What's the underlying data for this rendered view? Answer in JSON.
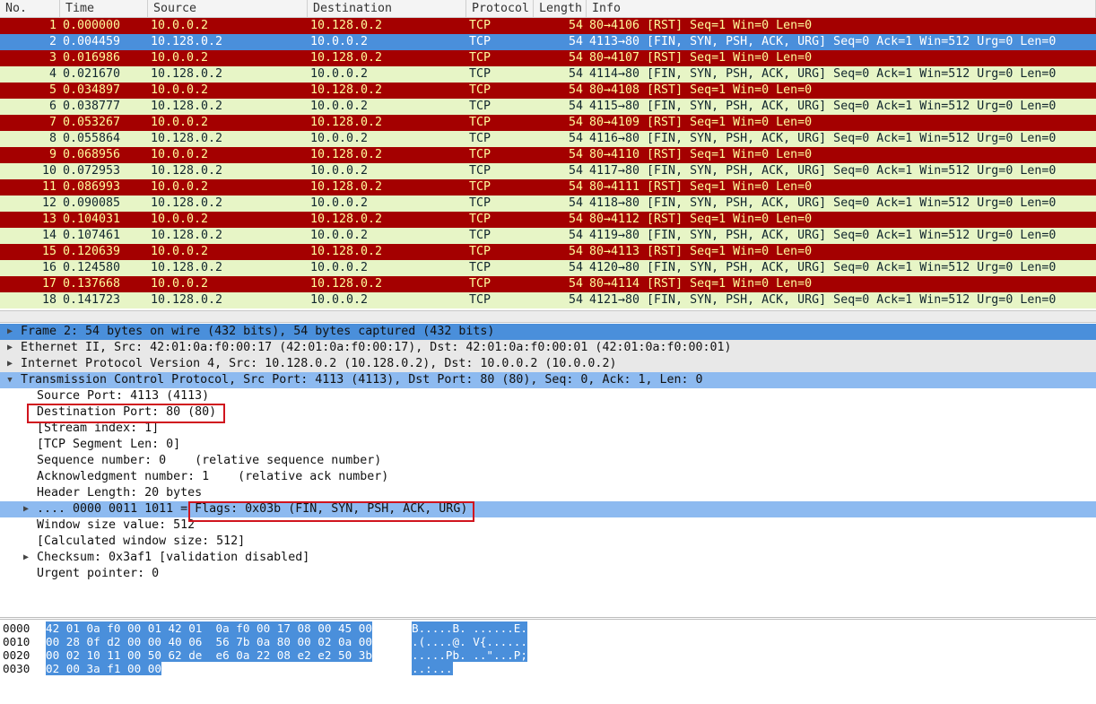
{
  "packet_list": {
    "columns": [
      "No.",
      "Time",
      "Source",
      "Destination",
      "Protocol",
      "Length",
      "Info"
    ],
    "row_colors": {
      "rst": {
        "background": "#a40000",
        "text": "#fffc9c"
      },
      "syn": {
        "background": "#e7f5c6",
        "text": "#12272e"
      },
      "selected": {
        "background": "#4a8fdb",
        "text": "#ffffff"
      }
    },
    "rows": [
      {
        "style": "rst",
        "cells": [
          "1",
          "0.000000",
          "10.0.0.2",
          "10.128.0.2",
          "TCP",
          "54",
          "80→4106 [RST] Seq=1 Win=0 Len=0"
        ]
      },
      {
        "style": "selected",
        "cells": [
          "2",
          "0.004459",
          "10.128.0.2",
          "10.0.0.2",
          "TCP",
          "54",
          "4113→80 [FIN, SYN, PSH, ACK, URG] Seq=0 Ack=1 Win=512 Urg=0 Len=0"
        ]
      },
      {
        "style": "rst",
        "cells": [
          "3",
          "0.016986",
          "10.0.0.2",
          "10.128.0.2",
          "TCP",
          "54",
          "80→4107 [RST] Seq=1 Win=0 Len=0"
        ]
      },
      {
        "style": "syn",
        "cells": [
          "4",
          "0.021670",
          "10.128.0.2",
          "10.0.0.2",
          "TCP",
          "54",
          "4114→80 [FIN, SYN, PSH, ACK, URG] Seq=0 Ack=1 Win=512 Urg=0 Len=0"
        ]
      },
      {
        "style": "rst",
        "cells": [
          "5",
          "0.034897",
          "10.0.0.2",
          "10.128.0.2",
          "TCP",
          "54",
          "80→4108 [RST] Seq=1 Win=0 Len=0"
        ]
      },
      {
        "style": "syn",
        "cells": [
          "6",
          "0.038777",
          "10.128.0.2",
          "10.0.0.2",
          "TCP",
          "54",
          "4115→80 [FIN, SYN, PSH, ACK, URG] Seq=0 Ack=1 Win=512 Urg=0 Len=0"
        ]
      },
      {
        "style": "rst",
        "cells": [
          "7",
          "0.053267",
          "10.0.0.2",
          "10.128.0.2",
          "TCP",
          "54",
          "80→4109 [RST] Seq=1 Win=0 Len=0"
        ]
      },
      {
        "style": "syn",
        "cells": [
          "8",
          "0.055864",
          "10.128.0.2",
          "10.0.0.2",
          "TCP",
          "54",
          "4116→80 [FIN, SYN, PSH, ACK, URG] Seq=0 Ack=1 Win=512 Urg=0 Len=0"
        ]
      },
      {
        "style": "rst",
        "cells": [
          "9",
          "0.068956",
          "10.0.0.2",
          "10.128.0.2",
          "TCP",
          "54",
          "80→4110 [RST] Seq=1 Win=0 Len=0"
        ]
      },
      {
        "style": "syn",
        "cells": [
          "10",
          "0.072953",
          "10.128.0.2",
          "10.0.0.2",
          "TCP",
          "54",
          "4117→80 [FIN, SYN, PSH, ACK, URG] Seq=0 Ack=1 Win=512 Urg=0 Len=0"
        ]
      },
      {
        "style": "rst",
        "cells": [
          "11",
          "0.086993",
          "10.0.0.2",
          "10.128.0.2",
          "TCP",
          "54",
          "80→4111 [RST] Seq=1 Win=0 Len=0"
        ]
      },
      {
        "style": "syn",
        "cells": [
          "12",
          "0.090085",
          "10.128.0.2",
          "10.0.0.2",
          "TCP",
          "54",
          "4118→80 [FIN, SYN, PSH, ACK, URG] Seq=0 Ack=1 Win=512 Urg=0 Len=0"
        ]
      },
      {
        "style": "rst",
        "cells": [
          "13",
          "0.104031",
          "10.0.0.2",
          "10.128.0.2",
          "TCP",
          "54",
          "80→4112 [RST] Seq=1 Win=0 Len=0"
        ]
      },
      {
        "style": "syn",
        "cells": [
          "14",
          "0.107461",
          "10.128.0.2",
          "10.0.0.2",
          "TCP",
          "54",
          "4119→80 [FIN, SYN, PSH, ACK, URG] Seq=0 Ack=1 Win=512 Urg=0 Len=0"
        ]
      },
      {
        "style": "rst",
        "cells": [
          "15",
          "0.120639",
          "10.0.0.2",
          "10.128.0.2",
          "TCP",
          "54",
          "80→4113 [RST] Seq=1 Win=0 Len=0"
        ]
      },
      {
        "style": "syn",
        "cells": [
          "16",
          "0.124580",
          "10.128.0.2",
          "10.0.0.2",
          "TCP",
          "54",
          "4120→80 [FIN, SYN, PSH, ACK, URG] Seq=0 Ack=1 Win=512 Urg=0 Len=0"
        ]
      },
      {
        "style": "rst",
        "cells": [
          "17",
          "0.137668",
          "10.0.0.2",
          "10.128.0.2",
          "TCP",
          "54",
          "80→4114 [RST] Seq=1 Win=0 Len=0"
        ]
      },
      {
        "style": "syn",
        "cells": [
          "18",
          "0.141723",
          "10.128.0.2",
          "10.0.0.2",
          "TCP",
          "54",
          "4121→80 [FIN, SYN, PSH, ACK, URG] Seq=0 Ack=1 Win=512 Urg=0 Len=0"
        ]
      }
    ]
  },
  "packet_details": [
    {
      "text": "Frame 2: 54 bytes on wire (432 bits), 54 bytes captured (432 bits)",
      "level": 0,
      "expanded": false,
      "background": "#4a8fdb"
    },
    {
      "text": "Ethernet II, Src: 42:01:0a:f0:00:17 (42:01:0a:f0:00:17), Dst: 42:01:0a:f0:00:01 (42:01:0a:f0:00:01)",
      "level": 0,
      "expanded": false,
      "background": "#e8e8e8"
    },
    {
      "text": "Internet Protocol Version 4, Src: 10.128.0.2 (10.128.0.2), Dst: 10.0.0.2 (10.0.0.2)",
      "level": 0,
      "expanded": false,
      "background": "#e8e8e8"
    },
    {
      "text": "Transmission Control Protocol, Src Port: 4113 (4113), Dst Port: 80 (80), Seq: 0, Ack: 1, Len: 0",
      "level": 0,
      "expanded": true,
      "background": "#8dbaf0"
    },
    {
      "text": "Source Port: 4113 (4113)",
      "level": 1
    },
    {
      "text": "Destination Port: 80 (80)",
      "level": 1
    },
    {
      "text": "[Stream index: 1]",
      "level": 1
    },
    {
      "text": "[TCP Segment Len: 0]",
      "level": 1
    },
    {
      "text": "Sequence number: 0    (relative sequence number)",
      "level": 1
    },
    {
      "text": "Acknowledgment number: 1    (relative ack number)",
      "level": 1
    },
    {
      "text": "Header Length: 20 bytes",
      "level": 1
    },
    {
      "text": ".... 0000 0011 1011 = Flags: 0x03b (FIN, SYN, PSH, ACK, URG)",
      "level": 1,
      "expanded": false,
      "background": "#8dbaf0"
    },
    {
      "text": "Window size value: 512",
      "level": 1
    },
    {
      "text": "[Calculated window size: 512]",
      "level": 1
    },
    {
      "text": "Checksum: 0x3af1 [validation disabled]",
      "level": 1,
      "expanded": false
    },
    {
      "text": "Urgent pointer: 0",
      "level": 1
    }
  ],
  "packet_bytes": [
    {
      "offset": "0000",
      "hex": "42 01 0a f0 00 01 42 01  0a f0 00 17 08 00 45 00",
      "ascii": "B.....B. ......E."
    },
    {
      "offset": "0010",
      "hex": "00 28 0f d2 00 00 40 06  56 7b 0a 80 00 02 0a 00",
      "ascii": ".(....@. V{......"
    },
    {
      "offset": "0020",
      "hex": "00 02 10 11 00 50 62 de  e6 0a 22 08 e2 e2 50 3b",
      "ascii": ".....Pb. ..\"...P;"
    },
    {
      "offset": "0030",
      "hex": "02 00 3a f1 00 00",
      "ascii": "..:..."
    }
  ]
}
